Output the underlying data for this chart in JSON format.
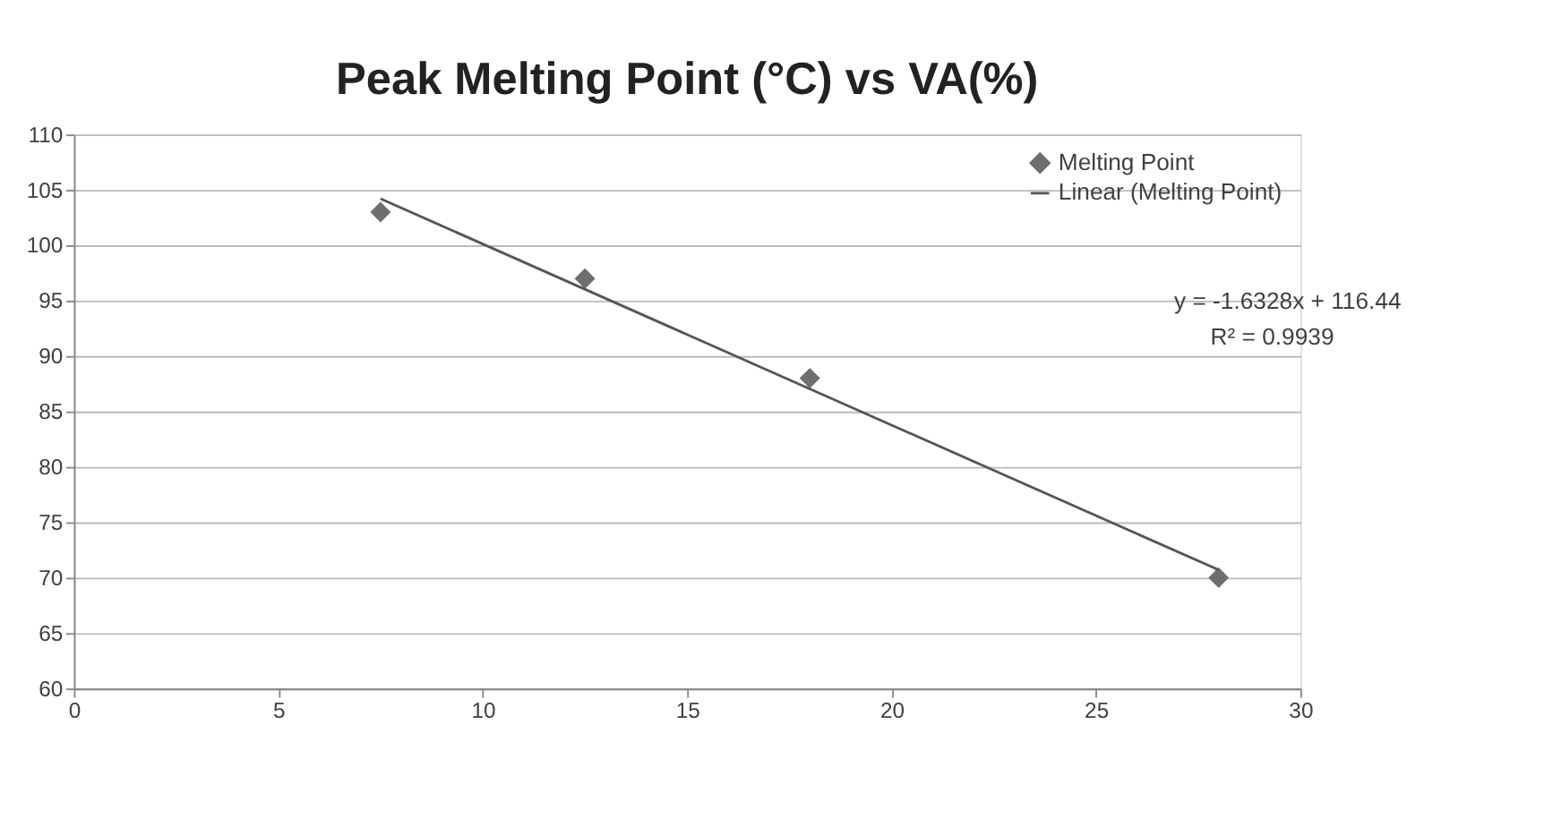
{
  "chart_data": {
    "type": "scatter",
    "title": "Peak Melting Point (°C) vs VA(%)",
    "xlim": [
      0,
      30
    ],
    "xticks": [
      0,
      5,
      10,
      15,
      20,
      25,
      30
    ],
    "ylim": [
      60,
      110
    ],
    "yticks": [
      60,
      65,
      70,
      75,
      80,
      85,
      90,
      95,
      100,
      105,
      110
    ],
    "grid": "y",
    "legend": "top right",
    "series": [
      {
        "name": "Melting Point",
        "type": "scatter",
        "marker": "diamond",
        "color": "#6e6e6e",
        "x": [
          7.5,
          12.5,
          18,
          28
        ],
        "values": [
          103,
          97,
          88,
          70
        ]
      },
      {
        "name": "Linear (Melting Point)",
        "type": "line",
        "line_style": "solid",
        "color": "#555555",
        "x": [
          7.5,
          28
        ],
        "values": [
          104.2,
          70.7
        ]
      }
    ],
    "annotations": [
      "y = -1.6328x + 116.44",
      "R² = 0.9939"
    ]
  }
}
